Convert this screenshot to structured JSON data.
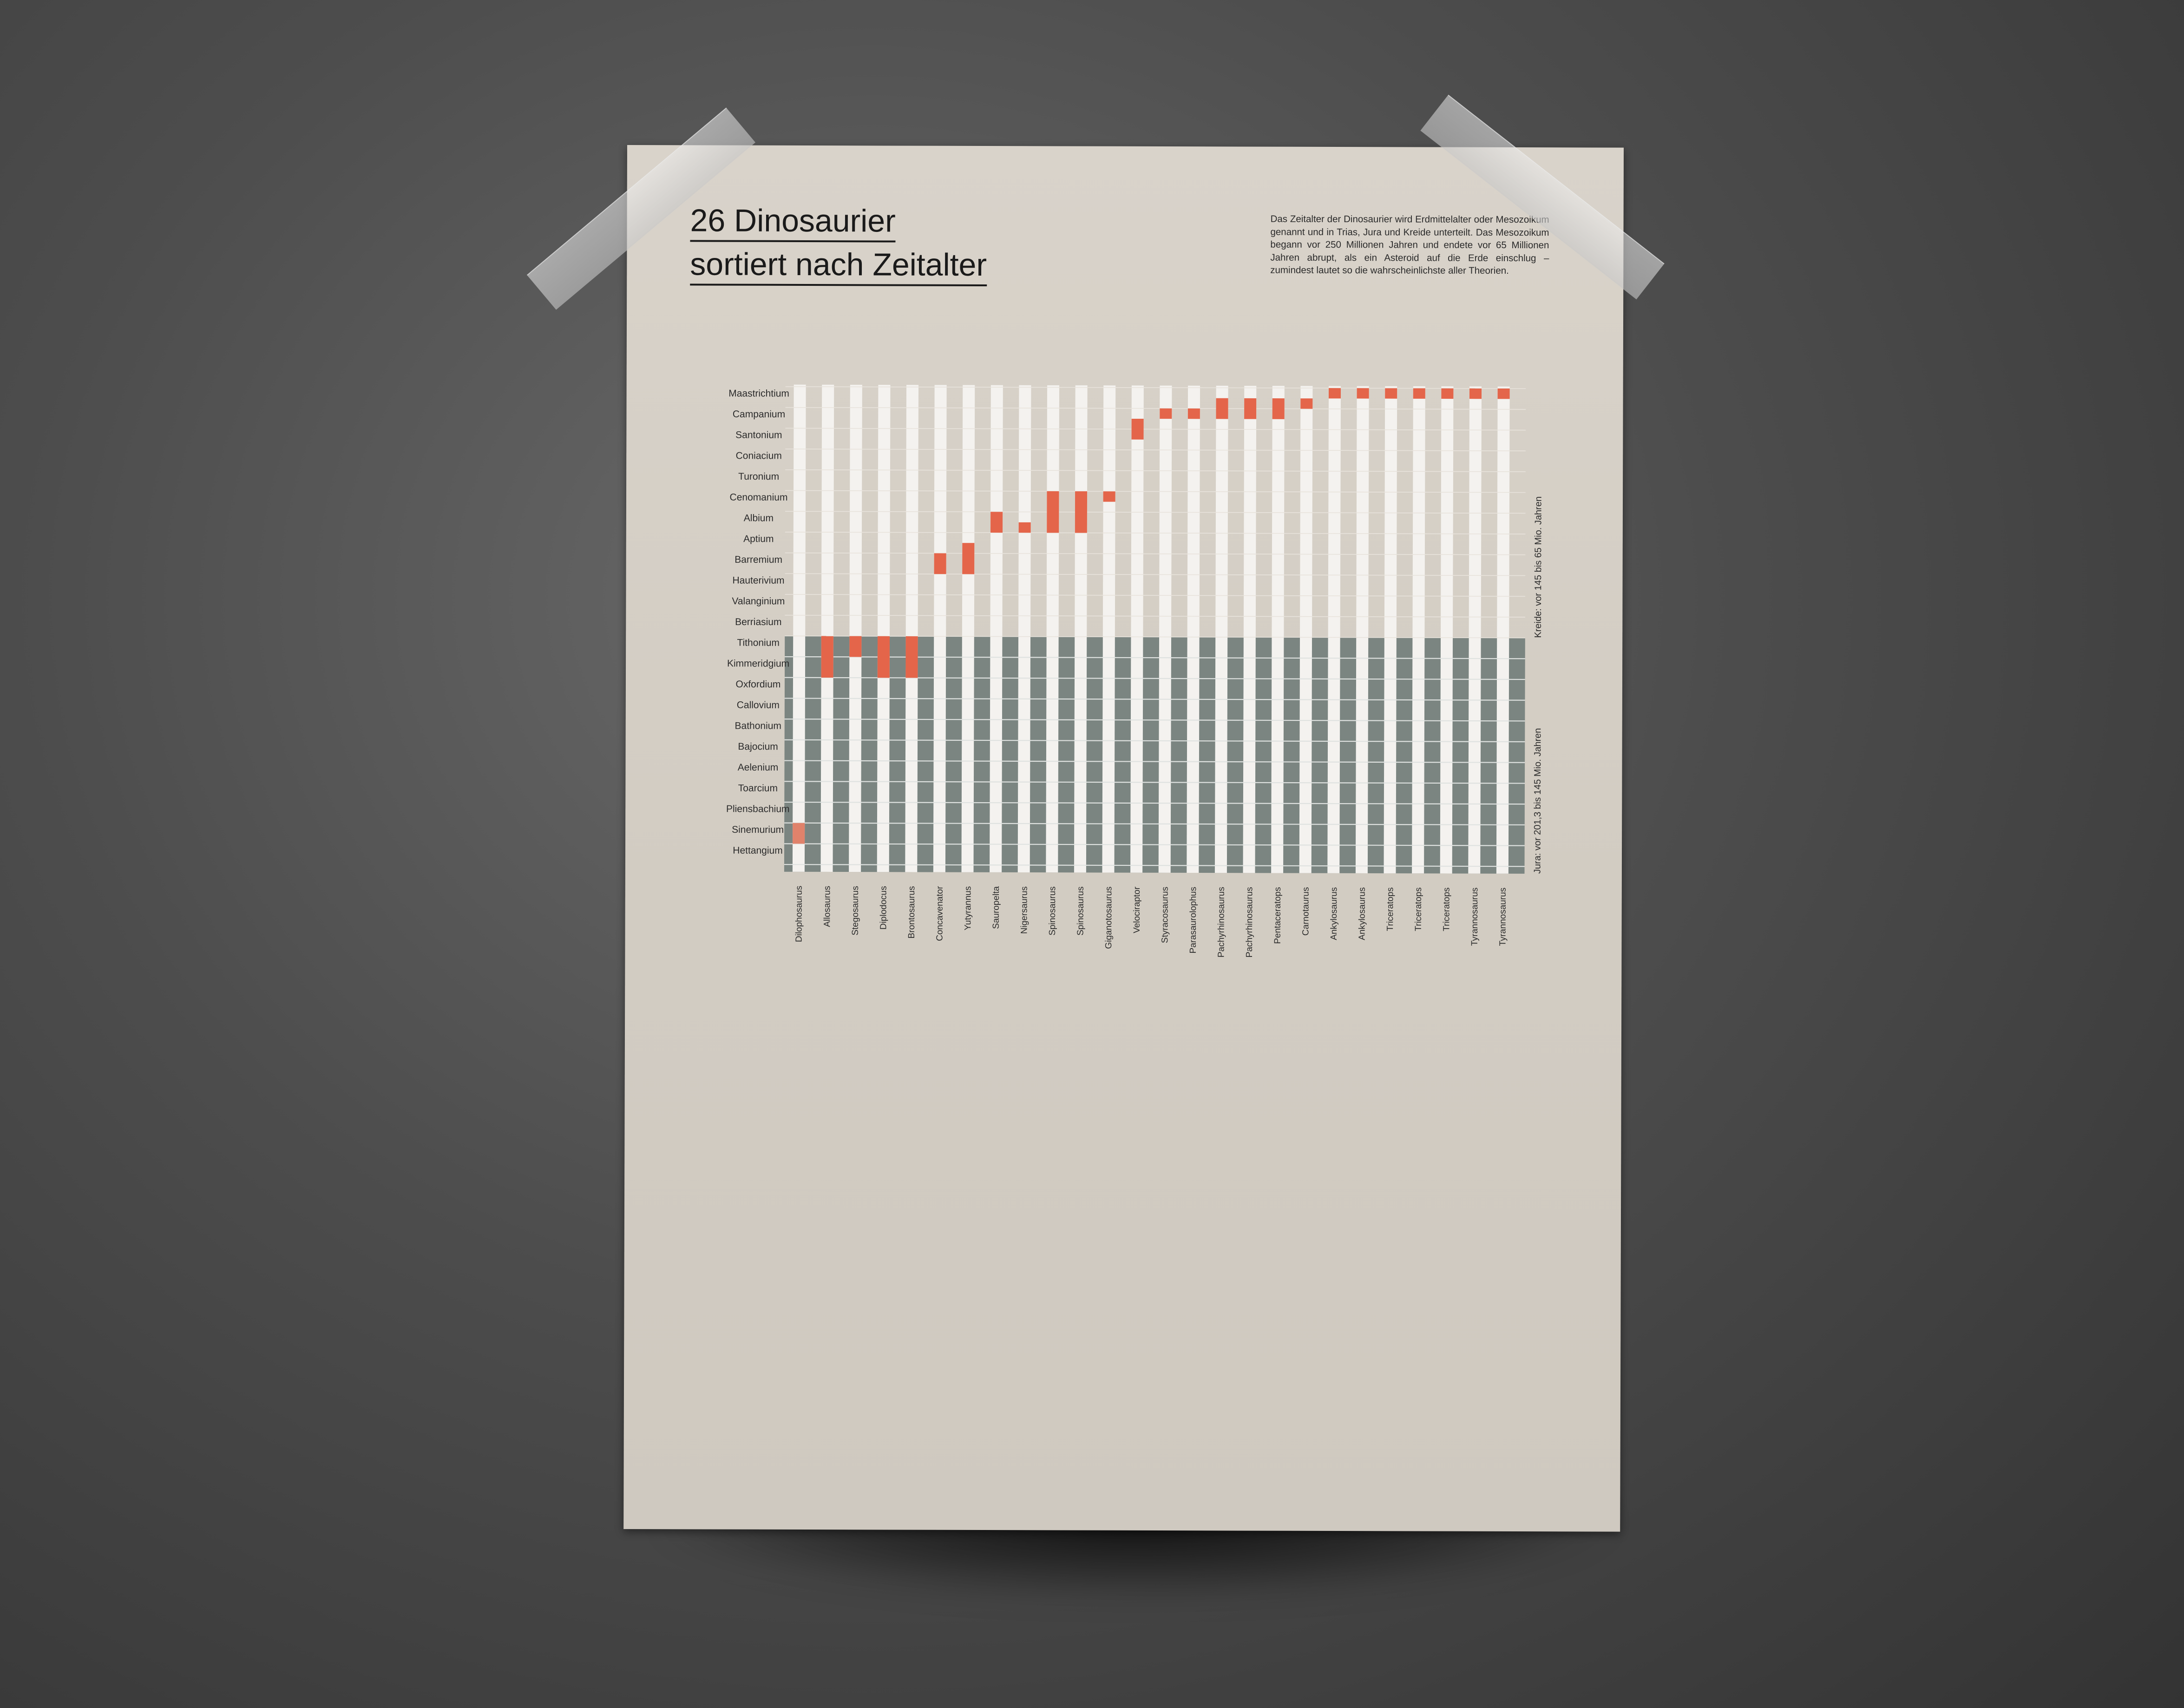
{
  "title": [
    "26 Dinosaurier",
    "sortiert nach Zeitalter"
  ],
  "intro": "Das Zeitalter der Dinosaurier wird Erdmittelalter oder Mesozoikum genannt und in Trias, Jura und Kreide unterteilt. Das Mesozoikum begann vor 250 Millionen Jahren und endete vor 65 Millionen Jahren abrupt, als ein Asteroid auf die Erde einschlug – zumindest lautet so die wahrscheinlichste aller Theorien.",
  "colors": {
    "kreide_column": "#f4f2ef",
    "jura_background": "#7b8581",
    "highlight": "#e4654a",
    "highlight_light": "#e0826b"
  },
  "chart_data": {
    "type": "heatmap",
    "title": "26 Dinosaurier sortiert nach Zeitalter",
    "x_labels": [
      "Dilophosaurus",
      "Allosaurus",
      "Stegosaurus",
      "Diplodocus",
      "Brontosaurus",
      "Concavenator",
      "Yutyrannus",
      "Sauropelta",
      "Nigersaurus",
      "Spinosaurus",
      "Spinosaurus",
      "Giganotosaurus",
      "Velociraptor",
      "Styracosaurus",
      "Parasaurolophus",
      "Pachyrhinosaurus",
      "Pachyrhinosaurus",
      "Pentaceratops",
      "Carnotaurus",
      "Ankylosaurus",
      "Ankylosaurus",
      "Triceratops",
      "Triceratops",
      "Triceratops",
      "Tyrannosaurus",
      "Tyrannosaurus"
    ],
    "y_labels": [
      "Maastrichtium",
      "Campanium",
      "Santonium",
      "Coniacium",
      "Turonium",
      "Cenomanium",
      "Albium",
      "Aptium",
      "Barremium",
      "Hauterivium",
      "Valanginium",
      "Berriasium",
      "Tithonium",
      "Kimmeridgium",
      "Oxfordium",
      "Callovium",
      "Bathonium",
      "Bajocium",
      "Aelenium",
      "Toarcium",
      "Pliensbachium",
      "Sinemurium",
      "Hettangium"
    ],
    "groups": [
      {
        "label": "Kreide: vor 145 bis 65 Mio. Jahren",
        "rows": [
          0,
          11
        ]
      },
      {
        "label": "Jura: vor 201,3 bis 145 Mio. Jahren",
        "rows": [
          12,
          22
        ]
      }
    ],
    "ranges": [
      {
        "dinosaur": "Dilophosaurus",
        "start": 21.0,
        "end": 22.0
      },
      {
        "dinosaur": "Allosaurus",
        "start": 12.0,
        "end": 14.0
      },
      {
        "dinosaur": "Stegosaurus",
        "start": 12.0,
        "end": 13.0
      },
      {
        "dinosaur": "Diplodocus",
        "start": 12.0,
        "end": 14.0
      },
      {
        "dinosaur": "Brontosaurus",
        "start": 12.0,
        "end": 14.0
      },
      {
        "dinosaur": "Concavenator",
        "start": 8.0,
        "end": 9.0
      },
      {
        "dinosaur": "Yutyrannus",
        "start": 7.5,
        "end": 9.0
      },
      {
        "dinosaur": "Sauropelta",
        "start": 6.0,
        "end": 7.0
      },
      {
        "dinosaur": "Nigersaurus",
        "start": 6.5,
        "end": 7.0
      },
      {
        "dinosaur": "Spinosaurus",
        "start": 5.0,
        "end": 7.0
      },
      {
        "dinosaur": "Spinosaurus",
        "start": 5.0,
        "end": 7.0
      },
      {
        "dinosaur": "Giganotosaurus",
        "start": 5.0,
        "end": 5.5
      },
      {
        "dinosaur": "Velociraptor",
        "start": 1.5,
        "end": 2.5
      },
      {
        "dinosaur": "Styracosaurus",
        "start": 1.0,
        "end": 1.5
      },
      {
        "dinosaur": "Parasaurolophus",
        "start": 1.0,
        "end": 1.5
      },
      {
        "dinosaur": "Pachyrhinosaurus",
        "start": 0.5,
        "end": 1.5
      },
      {
        "dinosaur": "Pachyrhinosaurus",
        "start": 0.5,
        "end": 1.5
      },
      {
        "dinosaur": "Pentaceratops",
        "start": 0.5,
        "end": 1.5
      },
      {
        "dinosaur": "Carnotaurus",
        "start": 0.5,
        "end": 1.0
      },
      {
        "dinosaur": "Ankylosaurus",
        "start": 0.0,
        "end": 0.5
      },
      {
        "dinosaur": "Ankylosaurus",
        "start": 0.0,
        "end": 0.5
      },
      {
        "dinosaur": "Triceratops",
        "start": 0.0,
        "end": 0.5
      },
      {
        "dinosaur": "Triceratops",
        "start": 0.0,
        "end": 0.5
      },
      {
        "dinosaur": "Triceratops",
        "start": 0.0,
        "end": 0.5
      },
      {
        "dinosaur": "Tyrannosaurus",
        "start": 0.0,
        "end": 0.5
      },
      {
        "dinosaur": "Tyrannosaurus",
        "start": 0.0,
        "end": 0.5
      }
    ]
  }
}
